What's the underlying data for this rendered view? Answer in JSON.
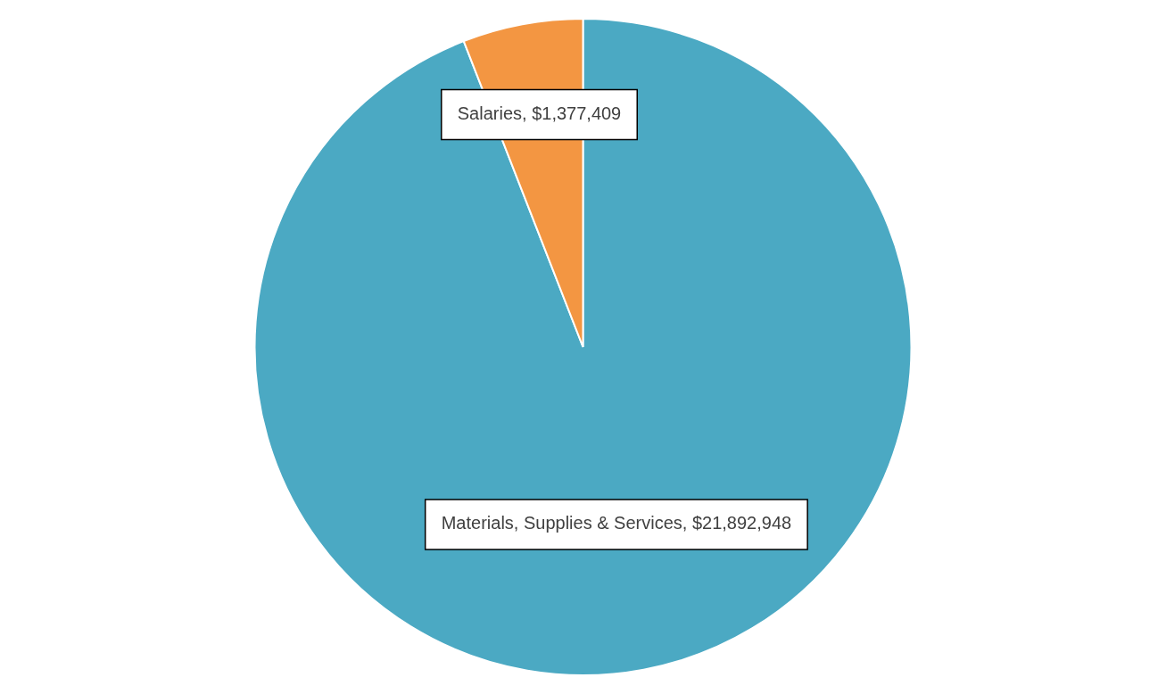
{
  "chart_data": {
    "type": "pie",
    "categories": [
      "Materials, Supplies & Services",
      "Salaries"
    ],
    "values": [
      21892948,
      1377409
    ],
    "value_labels": [
      "$21,892,948",
      "$1,377,409"
    ],
    "colors": [
      "#4ba9c3",
      "#f39642"
    ],
    "legend": false
  }
}
